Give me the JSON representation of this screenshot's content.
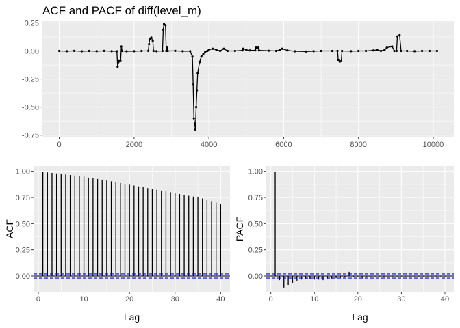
{
  "title": "ACF and PACF of diff(level_m)",
  "chart_data": [
    {
      "type": "line",
      "panel": "series",
      "title": "ACF and PACF of diff(level_m)",
      "xlabel": "",
      "ylabel": "",
      "xlim": [
        -450,
        10550
      ],
      "ylim": [
        -0.77,
        0.265
      ],
      "xticks": [
        0,
        2000,
        4000,
        6000,
        8000,
        10000
      ],
      "xtick_labels": [
        "0",
        "2000",
        "4000",
        "6000",
        "8000",
        "10000"
      ],
      "yticks": [
        -0.75,
        -0.5,
        -0.25,
        0.0,
        0.25
      ],
      "ytick_labels": [
        "-0.75",
        "-0.50",
        "-0.25",
        "0.00",
        "0.25"
      ],
      "grid": true,
      "series": [
        {
          "values": [
            [
              0,
              0.0
            ],
            [
              200,
              -0.002
            ],
            [
              400,
              0.001
            ],
            [
              600,
              -0.003
            ],
            [
              800,
              0.0
            ],
            [
              1000,
              -0.002
            ],
            [
              1200,
              0.001
            ],
            [
              1400,
              -0.002
            ],
            [
              1540,
              -0.003
            ],
            [
              1560,
              -0.14
            ],
            [
              1580,
              -0.1
            ],
            [
              1600,
              -0.09
            ],
            [
              1640,
              -0.09
            ],
            [
              1660,
              0.04
            ],
            [
              1680,
              0.0
            ],
            [
              1800,
              -0.003
            ],
            [
              2000,
              -0.002
            ],
            [
              2200,
              0.0
            ],
            [
              2380,
              0.001
            ],
            [
              2400,
              0.06
            ],
            [
              2420,
              0.11
            ],
            [
              2460,
              0.12
            ],
            [
              2500,
              0.09
            ],
            [
              2520,
              0.0
            ],
            [
              2600,
              -0.002
            ],
            [
              2760,
              0.0
            ],
            [
              2780,
              0.19
            ],
            [
              2800,
              0.24
            ],
            [
              2840,
              0.23
            ],
            [
              2860,
              0.0
            ],
            [
              2880,
              0.03
            ],
            [
              2900,
              0.0
            ],
            [
              3100,
              0.001
            ],
            [
              3300,
              -0.002
            ],
            [
              3500,
              -0.002
            ],
            [
              3560,
              -0.05
            ],
            [
              3580,
              -0.3
            ],
            [
              3600,
              -0.6
            ],
            [
              3620,
              -0.65
            ],
            [
              3640,
              -0.7
            ],
            [
              3660,
              -0.5
            ],
            [
              3680,
              -0.35
            ],
            [
              3700,
              -0.2
            ],
            [
              3750,
              -0.1
            ],
            [
              3800,
              -0.05
            ],
            [
              3850,
              -0.03
            ],
            [
              3900,
              -0.01
            ],
            [
              3960,
              0.0
            ],
            [
              4000,
              0.01
            ],
            [
              4100,
              0.02
            ],
            [
              4200,
              0.01
            ],
            [
              4300,
              0.0
            ],
            [
              4400,
              0.02
            ],
            [
              4500,
              0.0
            ],
            [
              4700,
              0.0
            ],
            [
              4900,
              0.005
            ],
            [
              4920,
              0.02
            ],
            [
              5000,
              0.01
            ],
            [
              5100,
              0.005
            ],
            [
              5240,
              0.005
            ],
            [
              5260,
              0.03
            ],
            [
              5320,
              0.03
            ],
            [
              5340,
              0.005
            ],
            [
              5600,
              0.002
            ],
            [
              5800,
              0.0
            ],
            [
              5900,
              0.01
            ],
            [
              5960,
              0.02
            ],
            [
              6100,
              0.005
            ],
            [
              6300,
              -0.003
            ],
            [
              6600,
              -0.005
            ],
            [
              6800,
              -0.002
            ],
            [
              7000,
              0.0
            ],
            [
              7300,
              0.0
            ],
            [
              7440,
              0.0
            ],
            [
              7460,
              -0.08
            ],
            [
              7500,
              -0.095
            ],
            [
              7540,
              -0.09
            ],
            [
              7560,
              0.0
            ],
            [
              7800,
              -0.002
            ],
            [
              8000,
              0.0
            ],
            [
              8200,
              0.0
            ],
            [
              8400,
              0.005
            ],
            [
              8500,
              0.01
            ],
            [
              8600,
              0.0
            ],
            [
              8700,
              0.01
            ],
            [
              8760,
              0.03
            ],
            [
              8900,
              0.04
            ],
            [
              8960,
              0.0
            ],
            [
              9020,
              0.0
            ],
            [
              9040,
              0.13
            ],
            [
              9100,
              0.14
            ],
            [
              9140,
              0.0
            ],
            [
              9300,
              0.0
            ],
            [
              9500,
              -0.002
            ],
            [
              9700,
              0.0
            ],
            [
              9900,
              0.0
            ],
            [
              10100,
              0.0
            ]
          ]
        }
      ]
    },
    {
      "type": "bar",
      "panel": "acf",
      "xlabel": "Lag",
      "ylabel": "ACF",
      "xlim": [
        -1.05,
        42.05
      ],
      "ylim": [
        -0.15,
        1.05
      ],
      "xticks": [
        0,
        10,
        20,
        30,
        40
      ],
      "xtick_labels": [
        "0",
        "10",
        "20",
        "30",
        "40"
      ],
      "yticks": [
        0.0,
        0.25,
        0.5,
        0.75,
        1.0
      ],
      "ytick_labels": [
        "0.00",
        "0.25",
        "0.50",
        "0.75",
        "1.00"
      ],
      "grid": true,
      "confidence_band": 0.02,
      "colors": {
        "band": "#0000ff",
        "bars": "#000000"
      },
      "lags": [
        1,
        2,
        3,
        4,
        5,
        6,
        7,
        8,
        9,
        10,
        11,
        12,
        13,
        14,
        15,
        16,
        17,
        18,
        19,
        20,
        21,
        22,
        23,
        24,
        25,
        26,
        27,
        28,
        29,
        30,
        31,
        32,
        33,
        34,
        35,
        36,
        37,
        38,
        39,
        40
      ],
      "values": [
        0.995,
        0.99,
        0.985,
        0.98,
        0.975,
        0.97,
        0.965,
        0.96,
        0.955,
        0.95,
        0.94,
        0.935,
        0.927,
        0.92,
        0.912,
        0.904,
        0.896,
        0.888,
        0.88,
        0.872,
        0.864,
        0.856,
        0.848,
        0.84,
        0.832,
        0.824,
        0.816,
        0.808,
        0.8,
        0.79,
        0.782,
        0.774,
        0.766,
        0.758,
        0.75,
        0.74,
        0.73,
        0.715,
        0.7,
        0.685
      ]
    },
    {
      "type": "bar",
      "panel": "pacf",
      "xlabel": "Lag",
      "ylabel": "PACF",
      "xlim": [
        -1.05,
        42.05
      ],
      "ylim": [
        -0.15,
        1.05
      ],
      "xticks": [
        0,
        10,
        20,
        30,
        40
      ],
      "xtick_labels": [
        "0",
        "10",
        "20",
        "30",
        "40"
      ],
      "yticks": [
        0.0,
        0.25,
        0.5,
        0.75,
        1.0
      ],
      "ytick_labels": [
        "0.00",
        "0.25",
        "0.50",
        "0.75",
        "1.00"
      ],
      "grid": true,
      "confidence_band": 0.02,
      "colors": {
        "band": "#0000ff",
        "bars": "#000000"
      },
      "lags": [
        1,
        2,
        3,
        4,
        5,
        6,
        7,
        8,
        9,
        10,
        11,
        12,
        13,
        14,
        15,
        16,
        17,
        18,
        19,
        20,
        21,
        22,
        23,
        24,
        25,
        26,
        27,
        28,
        29,
        30,
        31,
        32,
        33,
        34,
        35,
        36,
        37,
        38,
        39,
        40
      ],
      "values": [
        0.995,
        -0.04,
        -0.11,
        -0.085,
        -0.065,
        -0.045,
        -0.035,
        -0.03,
        -0.03,
        -0.035,
        -0.035,
        -0.04,
        -0.03,
        -0.025,
        -0.02,
        -0.015,
        -0.01,
        0.04,
        -0.01,
        -0.005,
        -0.015,
        -0.01,
        -0.005,
        -0.005,
        -0.005,
        -0.01,
        -0.005,
        -0.005,
        -0.005,
        -0.005,
        -0.005,
        -0.005,
        -0.005,
        -0.005,
        -0.005,
        -0.005,
        -0.005,
        -0.005,
        -0.005,
        -0.005
      ]
    }
  ]
}
